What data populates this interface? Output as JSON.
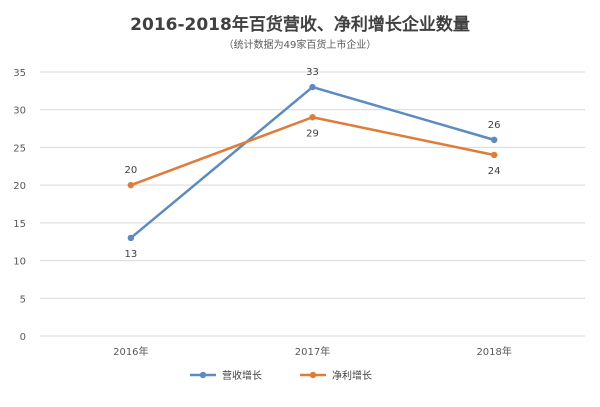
{
  "chart_data": {
    "type": "line",
    "title": "2016-2018年百货营收、净利增长企业数量",
    "subtitle": "（统计数据为49家百货上市企业）",
    "categories": [
      "2016年",
      "2017年",
      "2018年"
    ],
    "series": [
      {
        "name": "营收增长",
        "values": [
          13,
          33,
          26
        ],
        "color": "#5b8ac4"
      },
      {
        "name": "净利增长",
        "values": [
          20,
          29,
          24
        ],
        "color": "#e07b39"
      }
    ],
    "ylim": [
      0,
      35
    ],
    "yticks": [
      "0",
      "5",
      "10",
      "15",
      "20",
      "25",
      "30",
      "35"
    ],
    "grid": true,
    "legend": "bottom"
  }
}
